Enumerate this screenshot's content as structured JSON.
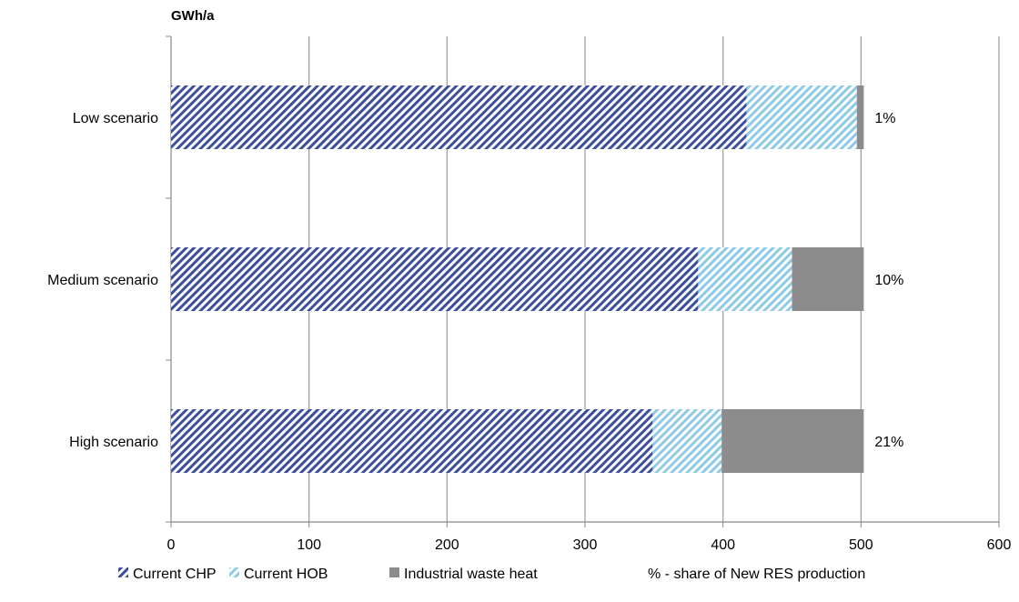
{
  "chart_data": {
    "type": "bar",
    "orientation": "horizontal",
    "stacked": true,
    "unit_label": "GWh/a",
    "categories": [
      "Low scenario",
      "Medium scenario",
      "High scenario"
    ],
    "series": [
      {
        "name": "Current CHP",
        "values": [
          417,
          382,
          349
        ],
        "color": "#3b4f9c",
        "pattern": "diagonal-hatch"
      },
      {
        "name": "Current HOB",
        "values": [
          80,
          68,
          50
        ],
        "color": "#8ecae6",
        "pattern": "diagonal-hatch"
      },
      {
        "name": "Industrial waste heat",
        "values": [
          5,
          52,
          103
        ],
        "color": "#8c8c8c",
        "pattern": "solid"
      }
    ],
    "data_labels": [
      "1%",
      "10%",
      "21%"
    ],
    "xlim": [
      0,
      600
    ],
    "x_ticks": [
      "0",
      "100",
      "200",
      "300",
      "400",
      "500",
      "600"
    ],
    "grid": true,
    "legend_position": "bottom",
    "legend_extra": "% - share of New RES production"
  }
}
